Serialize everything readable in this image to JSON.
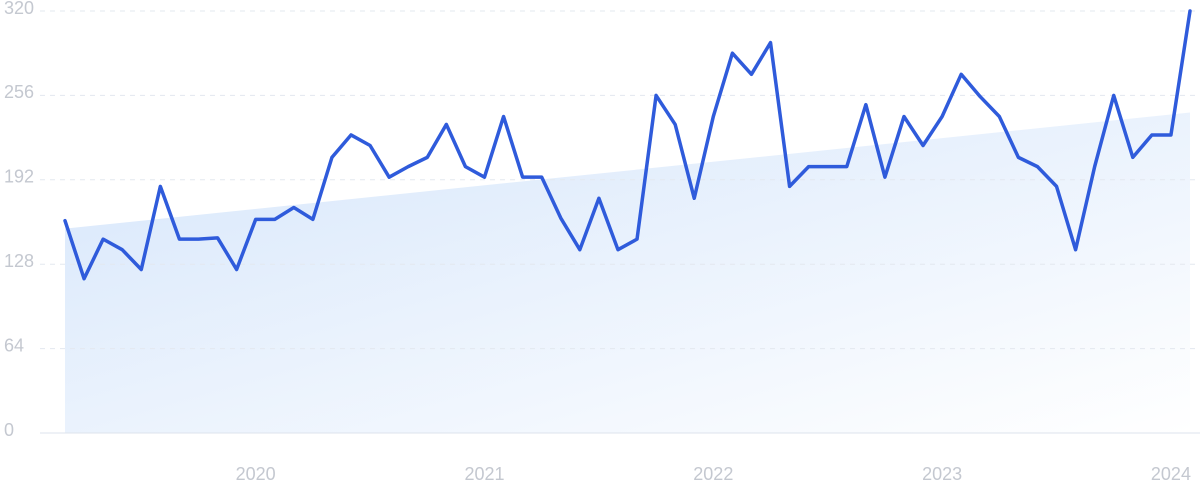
{
  "chart_data": {
    "type": "line",
    "categories": [
      null,
      null,
      null,
      null,
      null,
      null,
      null,
      null,
      null,
      null,
      "2020",
      null,
      null,
      null,
      null,
      null,
      null,
      null,
      null,
      null,
      null,
      null,
      "2021",
      null,
      null,
      null,
      null,
      null,
      null,
      null,
      null,
      null,
      null,
      null,
      "2022",
      null,
      null,
      null,
      null,
      null,
      null,
      null,
      null,
      null,
      null,
      null,
      "2023",
      null,
      null,
      null,
      null,
      null,
      null,
      null,
      null,
      null,
      null,
      null,
      "2024",
      null
    ],
    "series": [
      {
        "color": "#2f5bdb",
        "values": [
          161,
          117,
          147,
          139,
          124,
          187,
          147,
          147,
          148,
          124,
          162,
          162,
          171,
          162,
          209,
          226,
          218,
          194,
          202,
          209,
          234,
          202,
          194,
          240,
          194,
          194,
          163,
          139,
          178,
          139,
          147,
          256,
          234,
          178,
          240,
          288,
          272,
          296,
          187,
          202,
          202,
          202,
          249,
          194,
          240,
          218,
          240,
          272,
          255,
          240,
          209,
          202,
          187,
          139,
          202,
          256,
          209,
          226,
          226,
          320
        ]
      }
    ],
    "trend": [
      155,
      243
    ],
    "ylim": [
      0,
      320
    ],
    "yticks": [
      0,
      64,
      128,
      192,
      256,
      320
    ],
    "grid": true
  }
}
